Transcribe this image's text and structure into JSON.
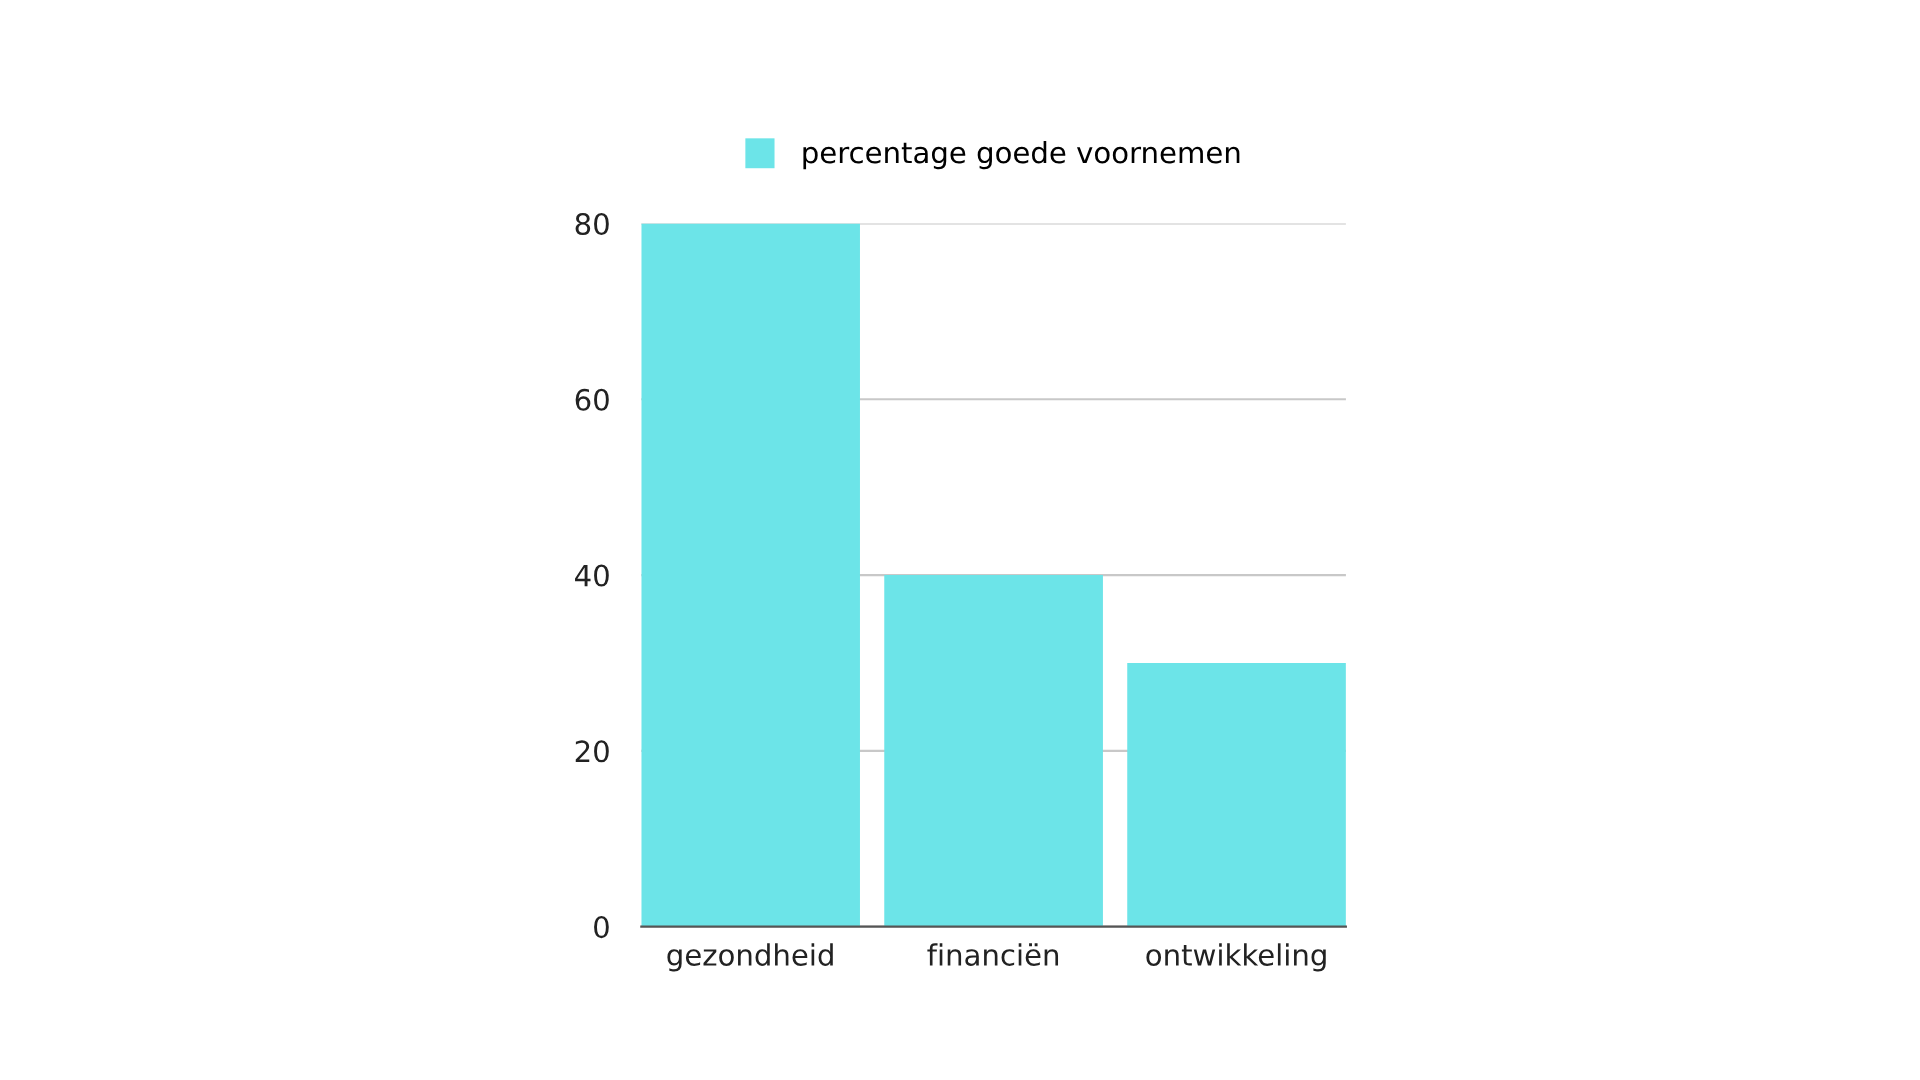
{
  "chart_data": {
    "type": "bar",
    "categories": [
      "gezondheid",
      "financiën",
      "ontwikkeling"
    ],
    "series": [
      {
        "name": "percentage goede voornemen",
        "color": "#6ce4e8",
        "values": [
          80,
          40,
          30
        ]
      }
    ],
    "ylim": [
      0,
      80
    ],
    "yticks": [
      0,
      20,
      40,
      60,
      80
    ],
    "grid": "y",
    "legend": "top"
  }
}
